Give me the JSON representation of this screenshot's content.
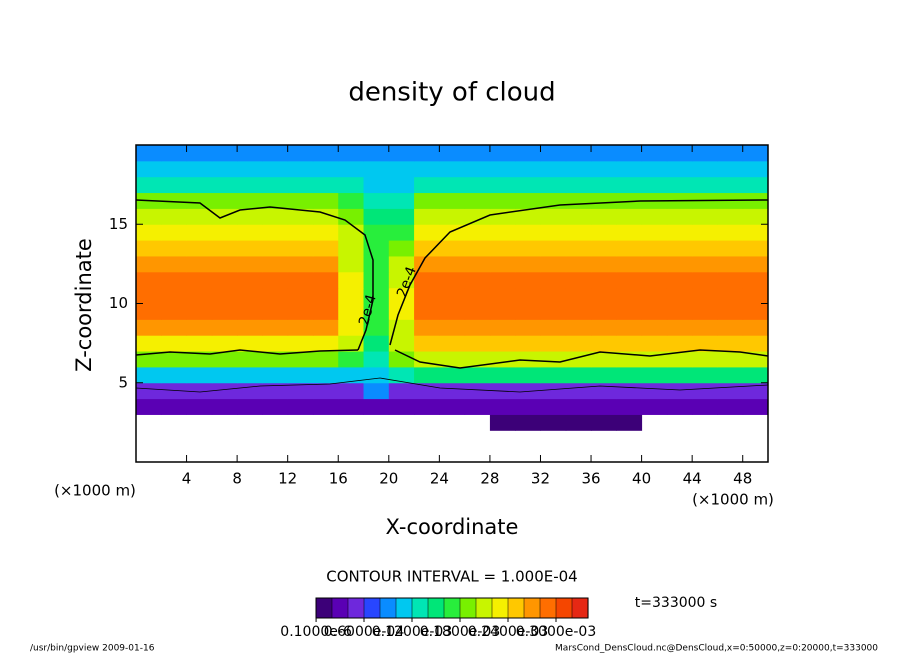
{
  "chart_data": {
    "type": "heatmap",
    "title": "density of cloud",
    "xlabel": "X-coordinate",
    "ylabel": "Z-coordinate",
    "x_unit": "(×1000 m)",
    "xlim": [
      0,
      50
    ],
    "ylim": [
      0,
      20
    ],
    "xticks": [
      4,
      8,
      12,
      16,
      20,
      24,
      28,
      32,
      36,
      40,
      44,
      48
    ],
    "yticks": [
      5,
      10,
      15
    ],
    "x": [
      1,
      3,
      5,
      7,
      9,
      11,
      13,
      15,
      17,
      19,
      21,
      23,
      25,
      27,
      29,
      31,
      33,
      35,
      37,
      39,
      41,
      43,
      45,
      47,
      49
    ],
    "z": [
      0.5,
      1.5,
      2.5,
      3.5,
      4.5,
      5.5,
      6.5,
      7.5,
      8.5,
      9.5,
      10.5,
      11.5,
      12.5,
      13.5,
      14.5,
      15.5,
      16.5,
      17.5,
      18.5,
      19.5
    ],
    "values": [
      [
        null,
        null,
        null,
        null,
        null,
        null,
        null,
        null,
        null,
        null,
        null,
        null,
        null,
        null,
        null,
        null,
        null,
        null,
        null,
        null,
        null,
        null,
        null,
        null,
        null
      ],
      [
        null,
        null,
        null,
        null,
        null,
        null,
        null,
        null,
        null,
        null,
        null,
        null,
        null,
        null,
        null,
        null,
        null,
        null,
        null,
        null,
        null,
        null,
        null,
        null,
        null
      ],
      [
        null,
        null,
        null,
        null,
        null,
        null,
        null,
        null,
        null,
        null,
        null,
        null,
        null,
        null,
        1e-05,
        1e-05,
        1e-05,
        1e-05,
        1e-05,
        1e-05,
        null,
        null,
        null,
        null,
        null
      ],
      [
        2e-05,
        2e-05,
        2e-05,
        2e-05,
        2e-05,
        2e-05,
        2e-05,
        2e-05,
        2e-05,
        3e-05,
        2e-05,
        2e-05,
        2e-05,
        2e-05,
        2e-05,
        2e-05,
        2e-05,
        2e-05,
        2e-05,
        2e-05,
        2e-05,
        2e-05,
        2e-05,
        2e-05,
        2e-05
      ],
      [
        6e-05,
        6e-05,
        6e-05,
        6e-05,
        6e-05,
        6e-05,
        6e-05,
        6e-05,
        6e-05,
        9e-05,
        6e-05,
        6e-05,
        6e-05,
        6e-05,
        6e-05,
        6e-05,
        6e-05,
        6e-05,
        6e-05,
        6e-05,
        6e-05,
        6e-05,
        6e-05,
        6e-05,
        6e-05
      ],
      [
        0.00012,
        0.00012,
        0.00012,
        0.00012,
        0.00012,
        0.00012,
        0.00012,
        0.00012,
        0.00012,
        0.00012,
        0.00014,
        0.00015,
        0.00015,
        0.00015,
        0.00015,
        0.00015,
        0.00015,
        0.00015,
        0.00015,
        0.00015,
        0.00015,
        0.00015,
        0.00015,
        0.00015,
        0.00015
      ],
      [
        0.00018,
        0.00018,
        0.00018,
        0.00018,
        0.00018,
        0.00018,
        0.00018,
        0.00018,
        0.00017,
        0.00013,
        0.00018,
        0.00021,
        0.00021,
        0.00021,
        0.00021,
        0.00021,
        0.00021,
        0.00021,
        0.00021,
        0.00021,
        0.00021,
        0.00021,
        0.00021,
        0.00021,
        0.00021
      ],
      [
        0.00023,
        0.00023,
        0.00023,
        0.00023,
        0.00023,
        0.00023,
        0.00023,
        0.00023,
        0.00022,
        0.00015,
        0.00021,
        0.00025,
        0.00025,
        0.00025,
        0.00025,
        0.00025,
        0.00025,
        0.00025,
        0.00025,
        0.00025,
        0.00025,
        0.00025,
        0.00025,
        0.00025,
        0.00025
      ],
      [
        0.00027,
        0.00027,
        0.00027,
        0.00027,
        0.00027,
        0.00027,
        0.00027,
        0.00027,
        0.00023,
        0.00016,
        0.00022,
        0.00028,
        0.00028,
        0.00028,
        0.00028,
        0.00028,
        0.00028,
        0.00028,
        0.00028,
        0.00028,
        0.00028,
        0.00028,
        0.00028,
        0.00028,
        0.00028
      ],
      [
        0.00029,
        0.00029,
        0.00029,
        0.00029,
        0.00029,
        0.00029,
        0.00029,
        0.00029,
        0.00024,
        0.00016,
        0.00023,
        0.00029,
        0.00029,
        0.00029,
        0.00029,
        0.00029,
        0.00029,
        0.00029,
        0.00029,
        0.00029,
        0.00029,
        0.00029,
        0.00029,
        0.00029,
        0.00029
      ],
      [
        0.0003,
        0.0003,
        0.0003,
        0.0003,
        0.0003,
        0.0003,
        0.0003,
        0.0003,
        0.00024,
        0.00017,
        0.00023,
        0.0003,
        0.0003,
        0.0003,
        0.0003,
        0.0003,
        0.0003,
        0.0003,
        0.0003,
        0.0003,
        0.0003,
        0.0003,
        0.0003,
        0.0003,
        0.0003
      ],
      [
        0.00029,
        0.00029,
        0.00029,
        0.00029,
        0.00029,
        0.00029,
        0.00029,
        0.00029,
        0.00023,
        0.00017,
        0.00022,
        0.00029,
        0.00029,
        0.00029,
        0.00029,
        0.00029,
        0.00029,
        0.00029,
        0.00029,
        0.00029,
        0.00029,
        0.00029,
        0.00029,
        0.00029,
        0.00029
      ],
      [
        0.00028,
        0.00028,
        0.00028,
        0.00028,
        0.00028,
        0.00028,
        0.00028,
        0.00028,
        0.00022,
        0.00017,
        0.00021,
        0.00028,
        0.00028,
        0.00028,
        0.00028,
        0.00028,
        0.00028,
        0.00028,
        0.00028,
        0.00028,
        0.00028,
        0.00028,
        0.00028,
        0.00028,
        0.00028
      ],
      [
        0.00026,
        0.00026,
        0.00026,
        0.00026,
        0.00026,
        0.00026,
        0.00026,
        0.00026,
        0.00021,
        0.00017,
        0.00018,
        0.00026,
        0.00026,
        0.00026,
        0.00026,
        0.00026,
        0.00026,
        0.00026,
        0.00026,
        0.00026,
        0.00026,
        0.00026,
        0.00026,
        0.00026,
        0.00026
      ],
      [
        0.00024,
        0.00024,
        0.00024,
        0.00024,
        0.00024,
        0.00024,
        0.00024,
        0.00024,
        0.0002,
        0.00016,
        0.00016,
        0.00024,
        0.00024,
        0.00024,
        0.00024,
        0.00024,
        0.00024,
        0.00024,
        0.00024,
        0.00024,
        0.00024,
        0.00024,
        0.00024,
        0.00024,
        0.00024
      ],
      [
        0.00022,
        0.00022,
        0.00022,
        0.00022,
        0.00022,
        0.00022,
        0.00022,
        0.00022,
        0.00019,
        0.00015,
        0.00015,
        0.00022,
        0.00022,
        0.00022,
        0.00022,
        0.00022,
        0.00022,
        0.00022,
        0.00022,
        0.00022,
        0.00022,
        0.00022,
        0.00022,
        0.00022,
        0.00022
      ],
      [
        0.00018,
        0.00018,
        0.00018,
        0.00018,
        0.00018,
        0.00018,
        0.00018,
        0.00018,
        0.00016,
        0.00014,
        0.00014,
        0.00019,
        0.00019,
        0.00019,
        0.00019,
        0.00019,
        0.00019,
        0.00019,
        0.00019,
        0.00019,
        0.00019,
        0.00019,
        0.00019,
        0.00019,
        0.00019
      ],
      [
        0.00014,
        0.00014,
        0.00014,
        0.00014,
        0.00014,
        0.00014,
        0.00014,
        0.00014,
        0.00013,
        0.00012,
        0.00012,
        0.00014,
        0.00014,
        0.00014,
        0.00014,
        0.00014,
        0.00014,
        0.00014,
        0.00014,
        0.00014,
        0.00014,
        0.00014,
        0.00014,
        0.00014,
        0.00014
      ],
      [
        0.00011,
        0.00011,
        0.00011,
        0.00011,
        0.00011,
        0.00011,
        0.00011,
        0.00011,
        0.00011,
        0.0001,
        0.00011,
        0.00011,
        0.00011,
        0.00011,
        0.00011,
        0.00011,
        0.00011,
        0.00011,
        0.00011,
        0.00011,
        0.00011,
        0.00011,
        0.00011,
        0.00011,
        0.00011
      ],
      [
        9e-05,
        9e-05,
        9e-05,
        9e-05,
        9e-05,
        9e-05,
        9e-05,
        9e-05,
        9e-05,
        9e-05,
        9e-05,
        9e-05,
        9e-05,
        9e-05,
        9e-05,
        9e-05,
        9e-05,
        9e-05,
        9e-05,
        9e-05,
        9e-05,
        9e-05,
        9e-05,
        9e-05,
        9e-05
      ]
    ],
    "clim": [
      0,
      0.00034
    ],
    "colors": [
      "#3c0078",
      "#5a00b4",
      "#6e28dc",
      "#2846ff",
      "#0a8cff",
      "#00c8f0",
      "#00e6b4",
      "#00e678",
      "#28ee3c",
      "#78f000",
      "#c8f500",
      "#f5f000",
      "#ffc800",
      "#ff9600",
      "#ff6e00",
      "#f54600",
      "#e62814"
    ],
    "colorbar_ticks": [
      {
        "value": 1e-07,
        "label": "0.1000e-6"
      },
      {
        "value": 6e-05,
        "label": "0.6000e-04"
      },
      {
        "value": 0.00012,
        "label": "0.1200e-03"
      },
      {
        "value": 0.00018,
        "label": "0.1800e-03"
      },
      {
        "value": 0.00024,
        "label": "0.2400e-03"
      },
      {
        "value": 0.0003,
        "label": "0.3000e-03"
      }
    ],
    "annotations": [
      "2e-4",
      "2e-4",
      "CONTOUR INTERVAL = 1.000E-04",
      "t=333000 s",
      "/usr/bin/gpview  2009-01-16",
      "MarsCond_DensCloud.nc@DensCloud,x=0:50000,z=0:20000,t=333000"
    ]
  }
}
